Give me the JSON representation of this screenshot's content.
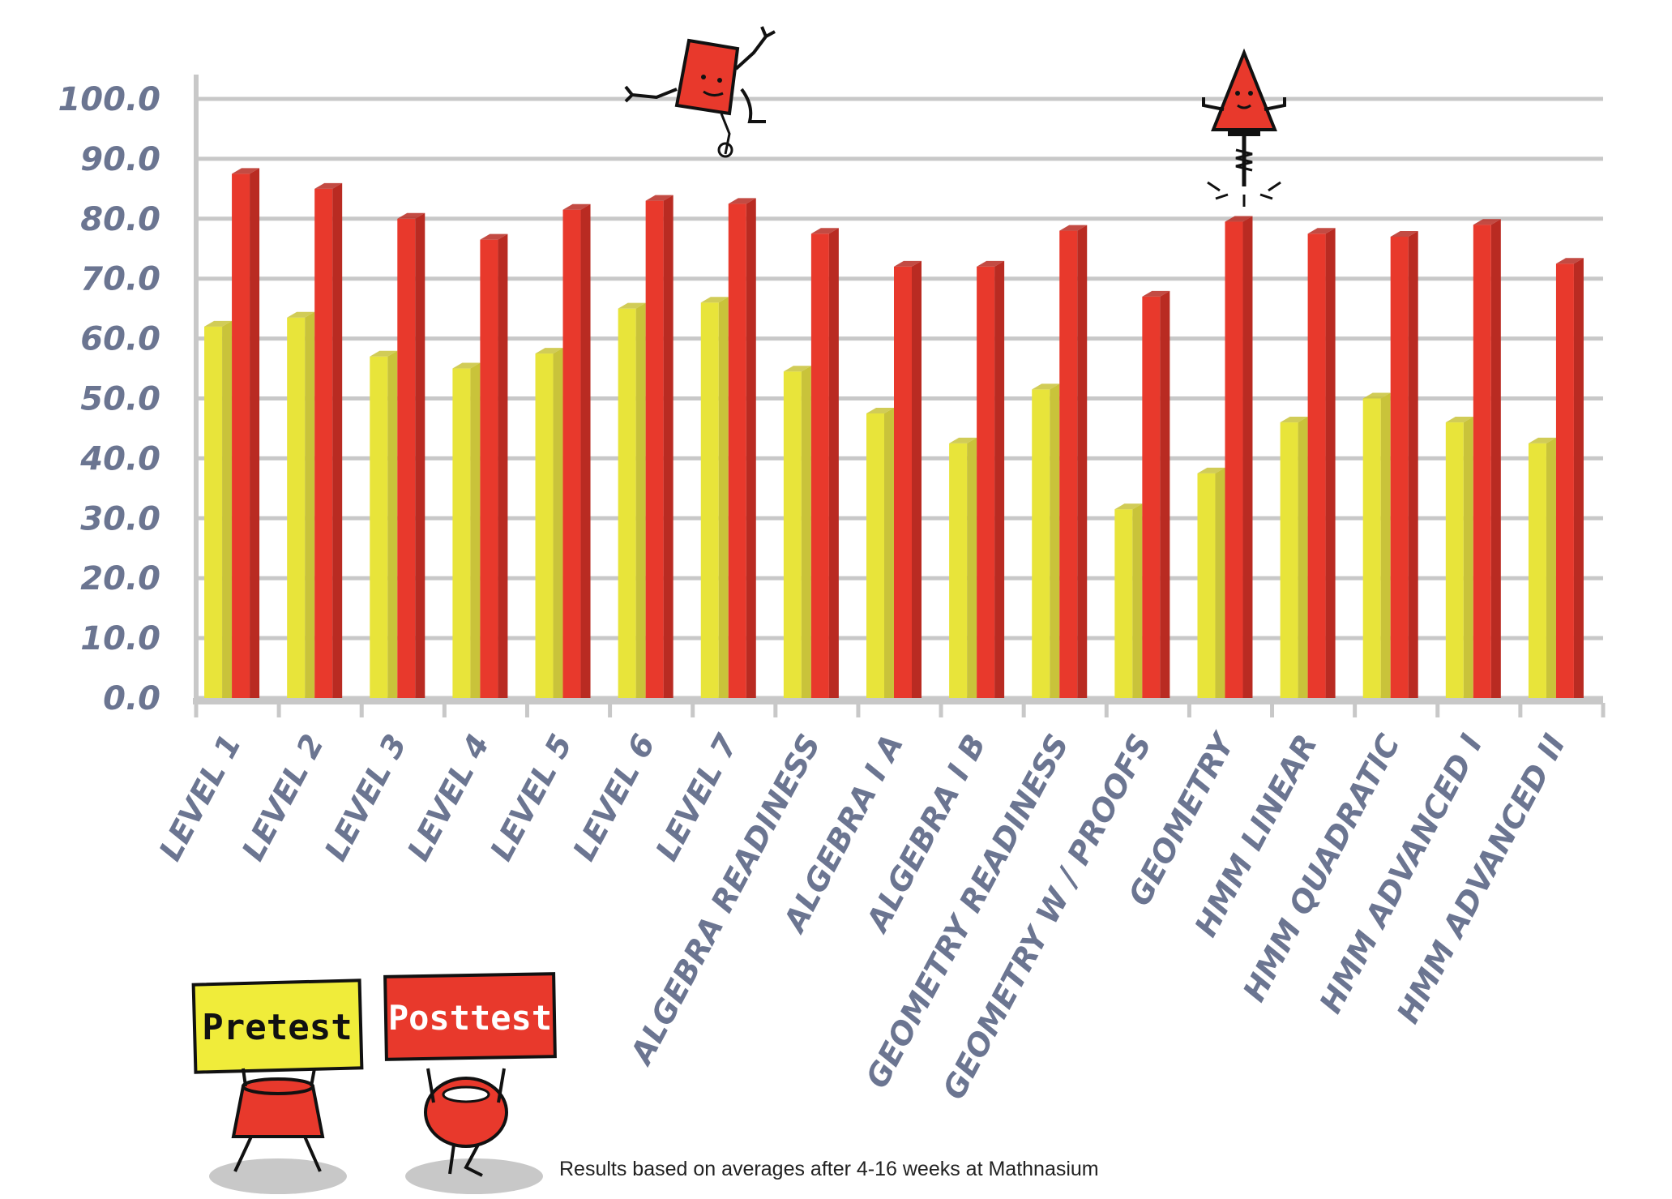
{
  "chart_data": {
    "type": "bar",
    "title": "",
    "xlabel": "",
    "ylabel": "",
    "ylim": [
      0,
      100
    ],
    "yticks": [
      "0.0",
      "10.0",
      "20.0",
      "30.0",
      "40.0",
      "50.0",
      "60.0",
      "70.0",
      "80.0",
      "90.0",
      "100.0"
    ],
    "grid": true,
    "legend_position": "bottom-left",
    "categories": [
      "LEVEL 1",
      "LEVEL 2",
      "LEVEL 3",
      "LEVEL 4",
      "LEVEL 5",
      "LEVEL 6",
      "LEVEL 7",
      "ALGEBRA READINESS",
      "ALGEBRA I A",
      "ALGEBRA I B",
      "GEOMETRY READINESS",
      "GEOMETRY W / PROOFS",
      "GEOMETRY",
      "HMM LINEAR",
      "HMM QUADRATIC",
      "HMM ADVANCED I",
      "HMM ADVANCED II"
    ],
    "series": [
      {
        "name": "Pretest",
        "color": "#e8e43a",
        "side_color": "#c9c33a",
        "values": [
          62,
          63.5,
          57,
          55,
          57.5,
          65,
          66,
          54.5,
          47.5,
          42.5,
          51.5,
          31.5,
          37.5,
          46,
          50,
          46,
          42.5
        ]
      },
      {
        "name": "Posttest",
        "color": "#e8392c",
        "side_color": "#b92b22",
        "values": [
          87.5,
          85,
          80,
          76.5,
          81.5,
          83,
          82.5,
          77.5,
          72,
          72,
          78,
          67,
          79.5,
          77.5,
          77,
          79,
          72.5
        ]
      }
    ]
  },
  "legend": {
    "pretest": "Pretest",
    "posttest": "Posttest"
  },
  "footnote": "Results based on averages after 4-16 weeks at Mathnasium",
  "colors": {
    "axis_text": "#6b7591",
    "grid": "#c8c8c8"
  }
}
